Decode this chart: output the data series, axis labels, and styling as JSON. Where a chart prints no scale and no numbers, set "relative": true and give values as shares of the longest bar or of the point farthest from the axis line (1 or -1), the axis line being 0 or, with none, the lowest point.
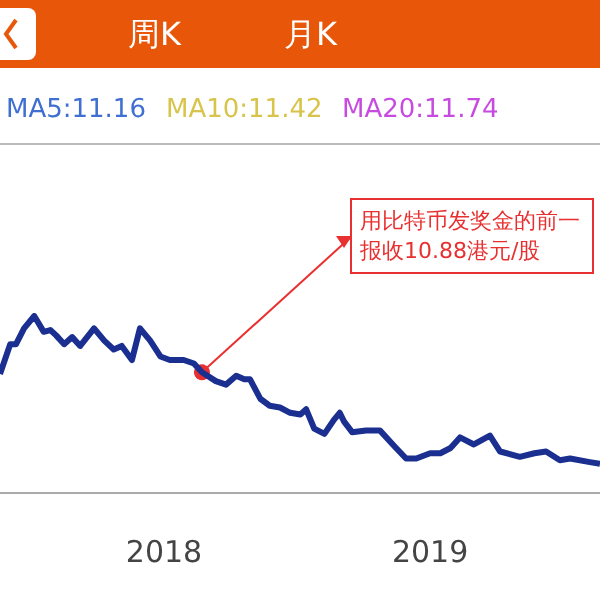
{
  "chart_data": {
    "type": "line",
    "relative": true,
    "x": [
      "2017-05-21",
      "2017-06-04",
      "2017-06-12",
      "2017-06-23",
      "2017-07-07",
      "2017-07-20",
      "2017-07-29",
      "2017-08-06",
      "2017-08-17",
      "2017-08-28",
      "2017-09-08",
      "2017-09-27",
      "2017-10-11",
      "2017-10-24",
      "2017-11-04",
      "2017-11-18",
      "2017-11-29",
      "2017-12-13",
      "2017-12-27",
      "2018-01-09",
      "2018-01-28",
      "2018-02-11",
      "2018-02-22",
      "2018-03-13",
      "2018-03-27",
      "2018-04-10",
      "2018-04-21",
      "2018-04-29",
      "2018-05-13",
      "2018-05-26",
      "2018-06-09",
      "2018-06-23",
      "2018-07-07",
      "2018-07-15",
      "2018-07-26",
      "2018-08-09",
      "2018-08-22",
      "2018-08-30",
      "2018-09-05",
      "2018-09-16",
      "2018-10-05",
      "2018-10-24",
      "2018-11-13",
      "2018-11-29",
      "2018-12-13",
      "2019-01-01",
      "2019-01-15",
      "2019-01-29",
      "2019-02-11",
      "2019-03-02",
      "2019-03-24",
      "2019-04-07",
      "2019-05-04",
      "2019-05-24",
      "2019-06-09",
      "2019-06-28",
      "2019-07-12",
      "2019-08-08",
      "2019-08-22"
    ],
    "series": [
      {
        "color": "#1a2f8f",
        "values": [
          0.67,
          0.84,
          0.84,
          0.93,
          1.0,
          0.91,
          0.92,
          0.89,
          0.84,
          0.88,
          0.83,
          0.93,
          0.86,
          0.81,
          0.83,
          0.75,
          0.93,
          0.86,
          0.77,
          0.75,
          0.75,
          0.73,
          0.68,
          0.63,
          0.61,
          0.66,
          0.64,
          0.64,
          0.53,
          0.49,
          0.48,
          0.45,
          0.44,
          0.47,
          0.36,
          0.33,
          0.41,
          0.45,
          0.4,
          0.34,
          0.35,
          0.35,
          0.26,
          0.19,
          0.19,
          0.22,
          0.22,
          0.25,
          0.31,
          0.27,
          0.32,
          0.23,
          0.2,
          0.22,
          0.23,
          0.18,
          0.19,
          0.17,
          0.16
        ]
      }
    ],
    "xlim": [
      "2017-05-21",
      "2019-08-22"
    ],
    "xticks": [
      "2018",
      "2019"
    ],
    "grid": false,
    "marker": "none",
    "annotations": [
      "周K",
      "月K",
      "MA5:11.16",
      "MA10:11.42",
      "MA20:11.74",
      {
        "text": "用比特币发奖金的前一报收10.88港元/股",
        "x": "2018-02-22",
        "y": 0.68
      }
    ]
  }
}
